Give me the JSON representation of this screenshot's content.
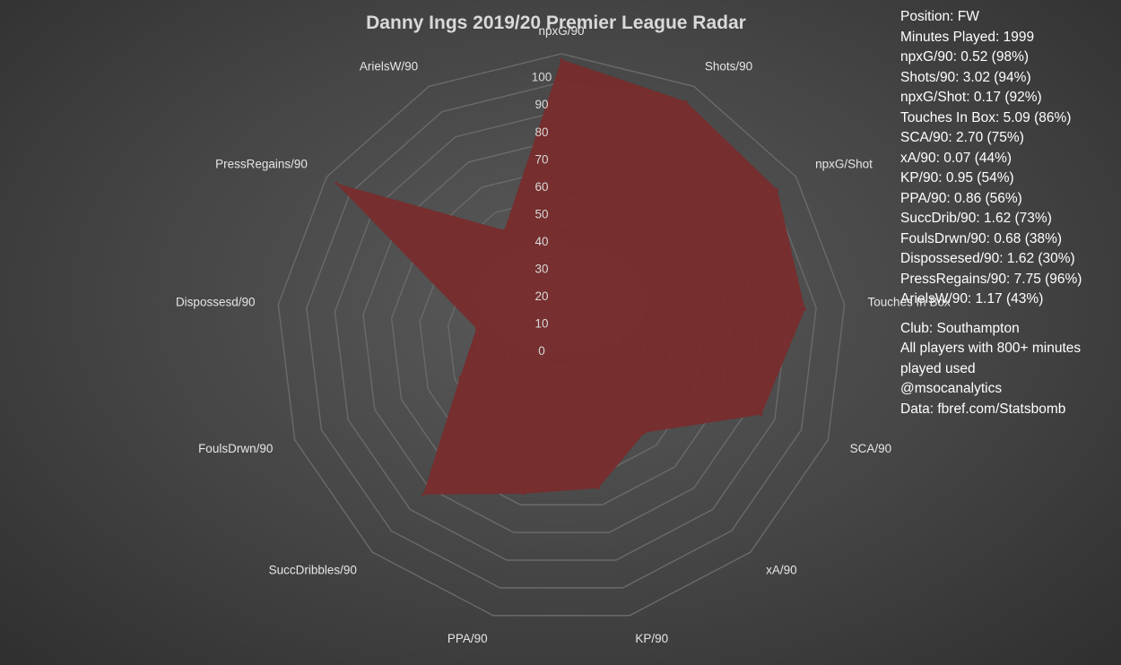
{
  "chart_data": {
    "type": "radar",
    "title": "Danny Ings 2019/20 Premier League Radar",
    "categories": [
      "npxG/90",
      "Shots/90",
      "npxG/Shot",
      "Touches In Box",
      "SCA/90",
      "xA/90",
      "KP/90",
      "PPA/90",
      "SuccDribbles/90",
      "FoulsDrwn/90",
      "Dispossesd/90",
      "PressRegains/90",
      "ArielsW/90"
    ],
    "series": [
      {
        "values": [
          98,
          94,
          92,
          86,
          75,
          44,
          54,
          56,
          73,
          38,
          30,
          96,
          43
        ]
      }
    ],
    "rlim": [
      0,
      100
    ],
    "ticks": [
      "0",
      "10",
      "20",
      "30",
      "40",
      "50",
      "60",
      "70",
      "80",
      "90",
      "100"
    ],
    "grid": true,
    "legend": "none"
  },
  "colors": {
    "fill": "#7a2b2b",
    "grid": "#6a6a6a",
    "label": "#e6e6e6",
    "tick": "#d9d9d9"
  },
  "info": {
    "stats": [
      "Position: FW",
      "Minutes Played: 1999",
      "npxG/90: 0.52 (98%)",
      "Shots/90: 3.02 (94%)",
      "npxG/Shot: 0.17 (92%)",
      "Touches In Box: 5.09 (86%)",
      "SCA/90: 2.70 (75%)",
      "xA/90: 0.07 (44%)",
      "KP/90: 0.95 (54%)",
      "PPA/90: 0.86 (56%)",
      "SuccDrib/90: 1.62 (73%)",
      "FoulsDrwn/90: 0.68 (38%)",
      "Dispossesed/90: 1.62 (30%)",
      "PressRegains/90: 7.75 (96%)",
      "ArielsW/90: 1.17 (43%)"
    ],
    "notes": [
      "Club: Southampton",
      "All players with 800+ minutes",
      "played used",
      "@msocanalytics",
      "Data: fbref.com/Statsbomb"
    ]
  }
}
